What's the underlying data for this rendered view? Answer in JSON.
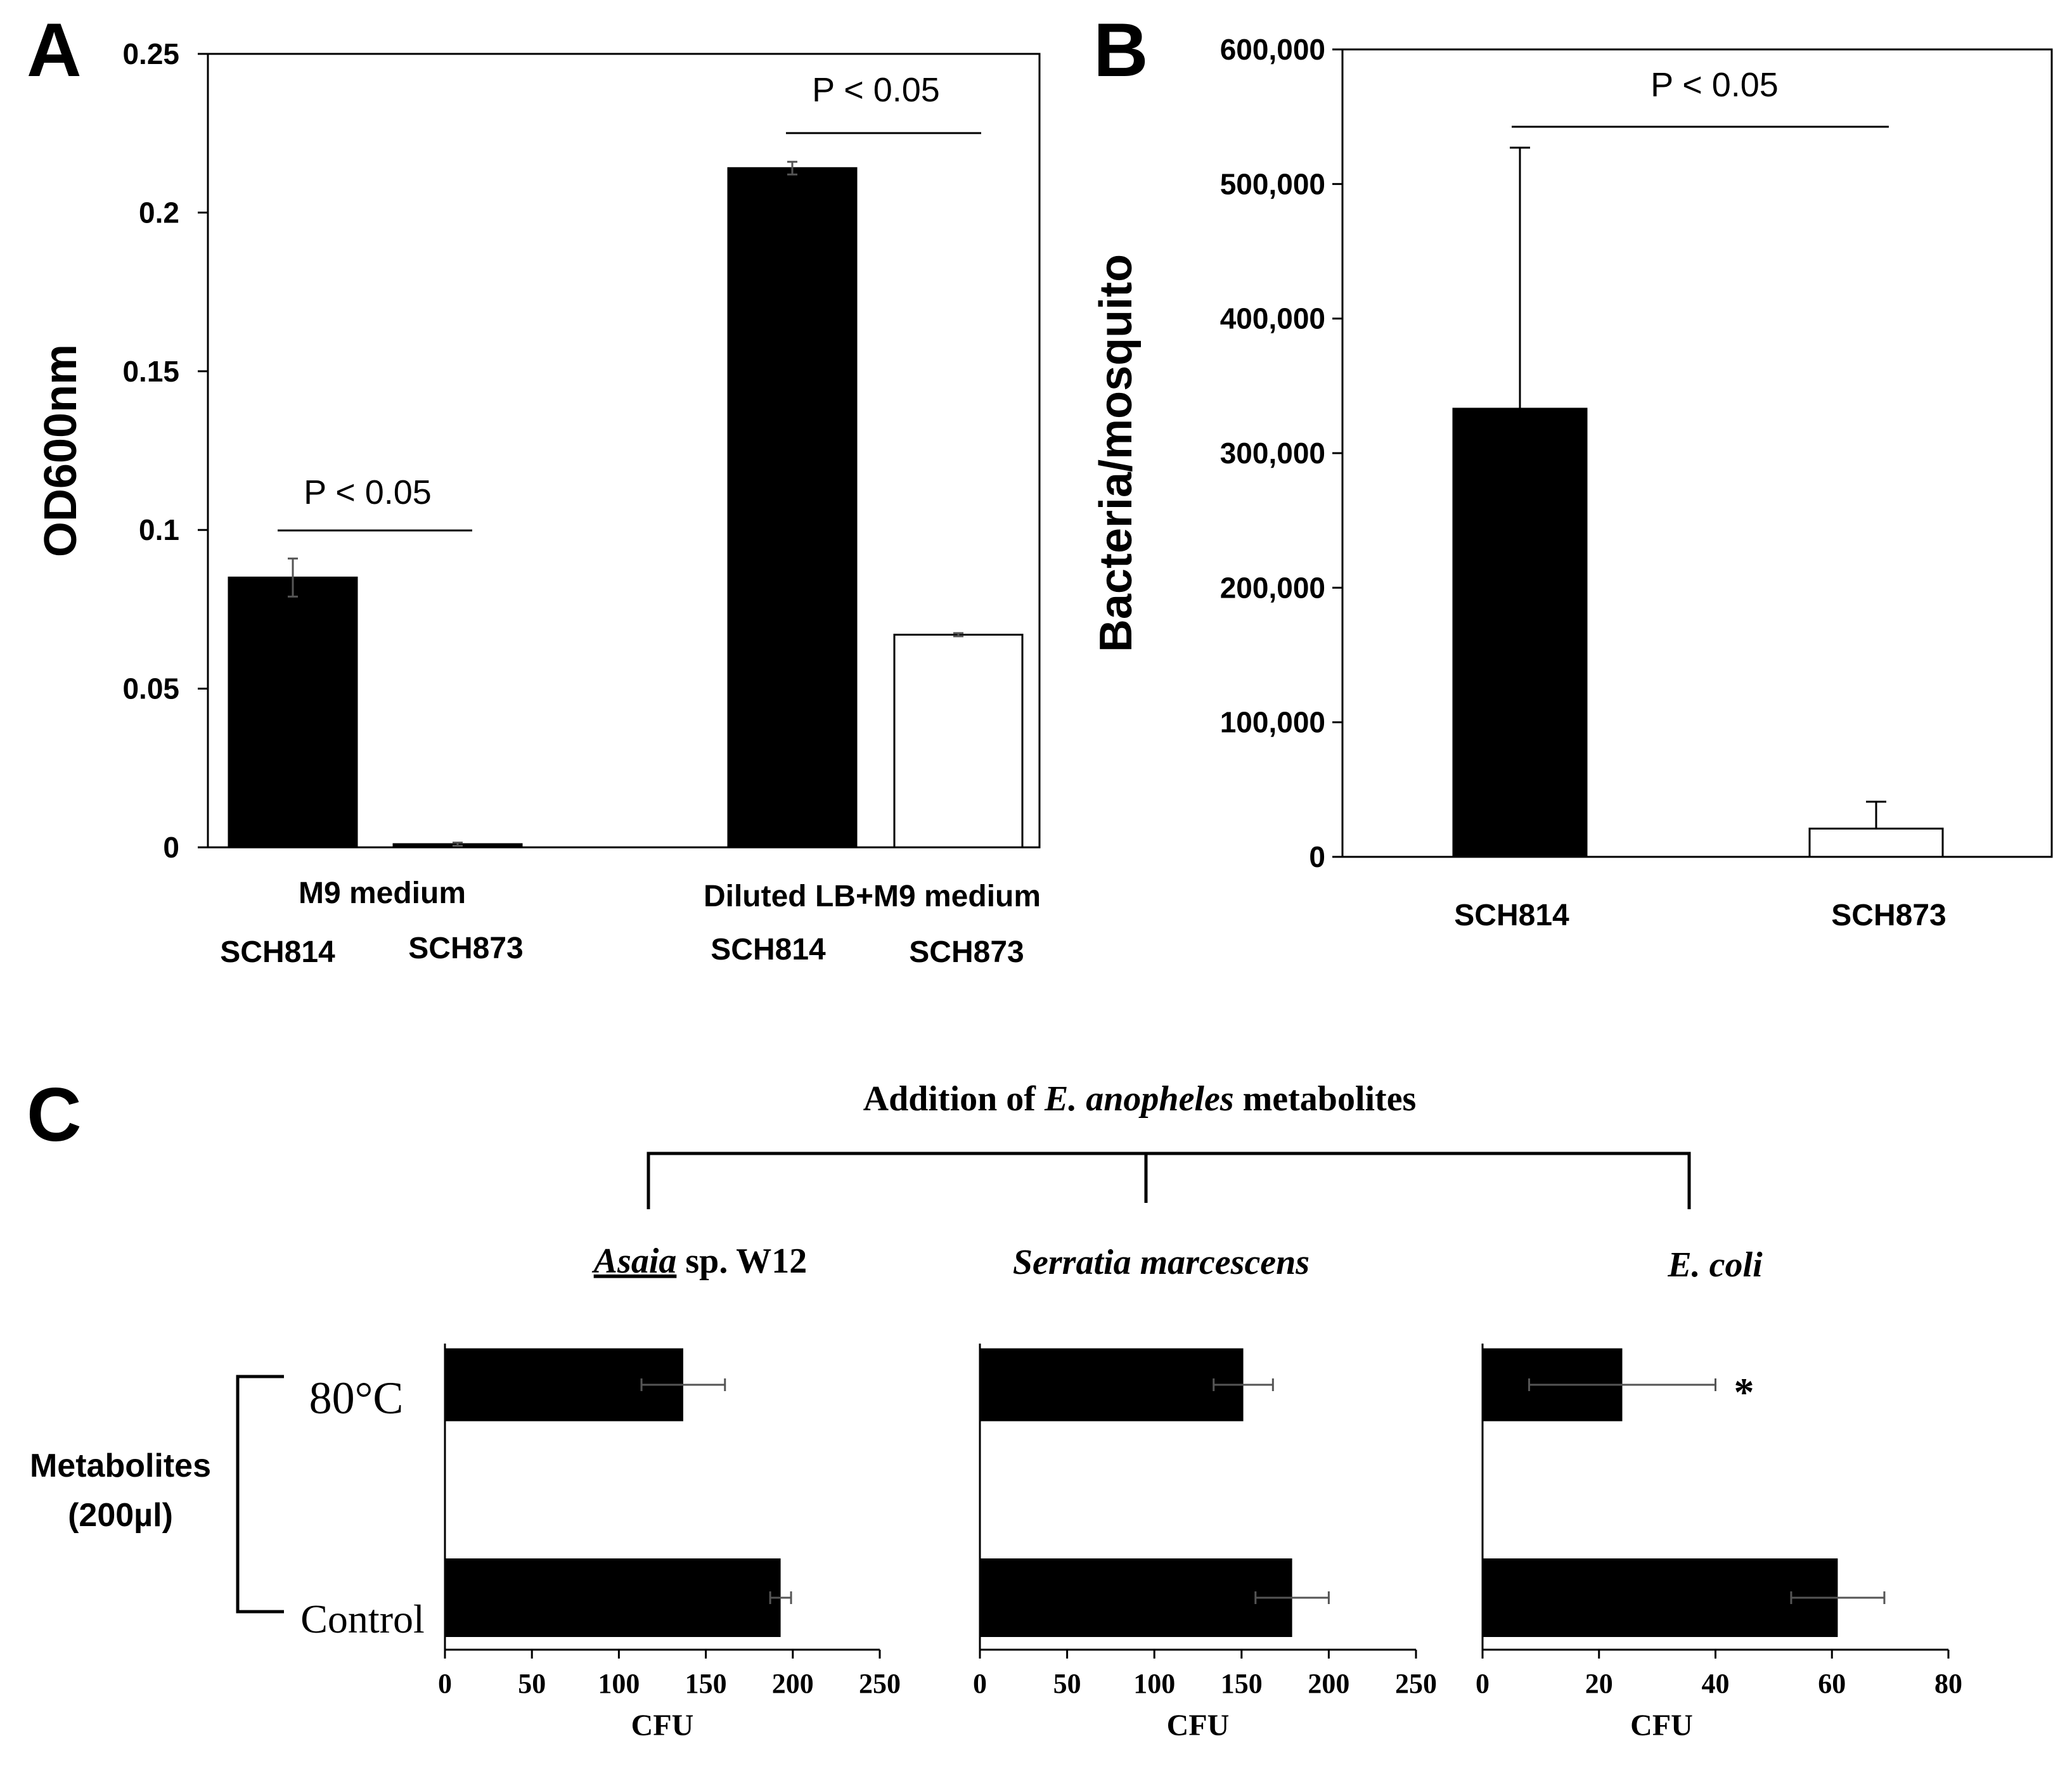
{
  "figure": {
    "panel_labels": {
      "a": "A",
      "b": "B",
      "c": "C"
    }
  },
  "chart_data": [
    {
      "panel": "A",
      "type": "bar",
      "ylabel": "OD600nm",
      "ylim": [
        0,
        0.25
      ],
      "yticks": [
        "0",
        "0.05",
        "0.1",
        "0.15",
        "0.2",
        "0.25"
      ],
      "groups": [
        {
          "label": "M9 medium",
          "bars": [
            {
              "strain": "SCH814",
              "value": 0.085,
              "error": 0.006,
              "fill": "#000000"
            },
            {
              "strain": "SCH873",
              "value": 0.001,
              "error": 0.0005,
              "fill": "#000000"
            }
          ]
        },
        {
          "label": "Diluted LB+M9 medium",
          "bars": [
            {
              "strain": "SCH814",
              "value": 0.214,
              "error": 0.002,
              "fill": "#000000"
            },
            {
              "strain": "SCH873",
              "value": 0.067,
              "error": 0.0005,
              "fill": "#ffffff"
            }
          ]
        }
      ],
      "annotations": [
        "P < 0.05",
        "P < 0.05"
      ]
    },
    {
      "panel": "B",
      "type": "bar",
      "ylabel": "Bacteria/mosquito",
      "ylim": [
        0,
        600000
      ],
      "yticks": [
        "0",
        "100,000",
        "200,000",
        "300,000",
        "400,000",
        "500,000",
        "600,000"
      ],
      "categories": [
        "SCH814",
        "SCH873"
      ],
      "values": [
        333000,
        21000
      ],
      "errors": [
        194000,
        20000
      ],
      "fills": [
        "#000000",
        "#ffffff"
      ],
      "annotation": "P < 0.05"
    },
    {
      "panel": "C",
      "type": "bar",
      "orientation": "horizontal",
      "title_prefix": "Addition of ",
      "title_species": "E. anopheles",
      "title_suffix": " metabolites",
      "row_group_label_line1": "Metabolites",
      "row_group_label_line2": "(200µl)",
      "rows": [
        "80°C",
        "Control"
      ],
      "xlabel": "CFU",
      "subplots": [
        {
          "title_italic": "Asaia",
          "title_rest": " sp. W12",
          "xlim": [
            0,
            250
          ],
          "xticks": [
            "0",
            "50",
            "100",
            "150",
            "200",
            "250"
          ],
          "values": [
            137,
            193
          ],
          "errors": [
            24,
            6
          ],
          "star": ""
        },
        {
          "title_italic": "Serratia marcescens",
          "title_rest": "",
          "xlim": [
            0,
            250
          ],
          "xticks": [
            "0",
            "50",
            "100",
            "150",
            "200",
            "250"
          ],
          "values": [
            151,
            179
          ],
          "errors": [
            17,
            21
          ],
          "star": ""
        },
        {
          "title_italic": "E. coli",
          "title_rest": "",
          "xlim": [
            0,
            80
          ],
          "xticks": [
            "0",
            "20",
            "40",
            "60",
            "80"
          ],
          "values": [
            24,
            61
          ],
          "errors": [
            16,
            8
          ],
          "star": "*"
        }
      ]
    }
  ]
}
